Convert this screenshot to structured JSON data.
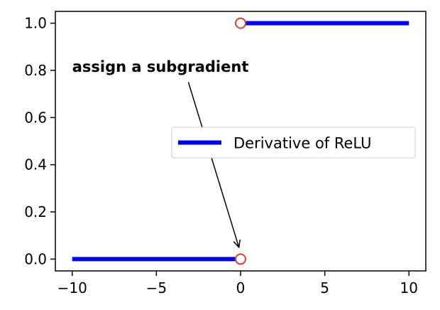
{
  "chart_data": {
    "type": "line",
    "title": "",
    "xlabel": "",
    "ylabel": "",
    "xlim": [
      -11,
      11
    ],
    "ylim": [
      -0.05,
      1.05
    ],
    "xticks": [
      -10,
      -5,
      0,
      5,
      10
    ],
    "xtick_labels": [
      "−10",
      "−5",
      "0",
      "5",
      "10"
    ],
    "yticks": [
      0.0,
      0.2,
      0.4,
      0.6,
      0.8,
      1.0
    ],
    "ytick_labels": [
      "0.0",
      "0.2",
      "0.4",
      "0.6",
      "0.8",
      "1.0"
    ],
    "grid": false,
    "series": [
      {
        "name": "Derivative of ReLU",
        "color": "#0000ff",
        "segments": [
          {
            "x": [
              -10,
              0
            ],
            "y": [
              0,
              0
            ]
          },
          {
            "x": [
              0,
              10
            ],
            "y": [
              1,
              1
            ]
          }
        ]
      }
    ],
    "open_markers": {
      "color": "#e03c31",
      "points": [
        {
          "x": 0,
          "y": 0
        },
        {
          "x": 0,
          "y": 1
        }
      ]
    },
    "legend": {
      "placement": "center-right",
      "entries": [
        "Derivative of ReLU"
      ]
    },
    "annotation": {
      "text": "assign a subgradient",
      "text_anchor": {
        "x": -10,
        "y": 0.8
      },
      "arrow_from": {
        "x": -3.1,
        "y": 0.75
      },
      "arrow_to": {
        "x": -0.1,
        "y": 0.05
      }
    }
  }
}
